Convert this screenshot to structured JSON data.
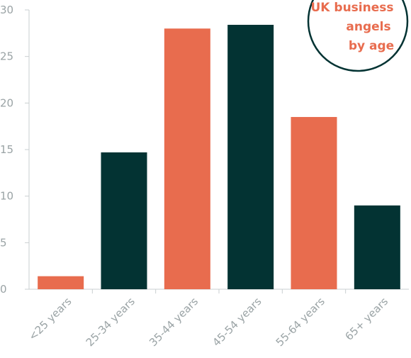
{
  "colors": {
    "accent": "#e86c4e",
    "dark": "#033333",
    "axis": "#c9cfd0",
    "text": "#9aa3a5"
  },
  "badge": {
    "lines": [
      "UK business",
      "angels",
      "by age"
    ]
  },
  "chart_data": {
    "type": "bar",
    "title": "UK business angels by age",
    "xlabel": "",
    "ylabel": "",
    "categories": [
      "<25 years",
      "25-34 years",
      "35-44 years",
      "45-54 years",
      "55-64 years",
      "65+ years"
    ],
    "values": [
      1.4,
      14.7,
      28.0,
      28.4,
      18.5,
      9.0
    ],
    "bar_colors": [
      "#e86c4e",
      "#033333",
      "#e86c4e",
      "#033333",
      "#e86c4e",
      "#033333"
    ],
    "ylim": [
      0,
      30
    ],
    "yticks": [
      0,
      5,
      10,
      15,
      20,
      25,
      30
    ],
    "grid": false
  }
}
